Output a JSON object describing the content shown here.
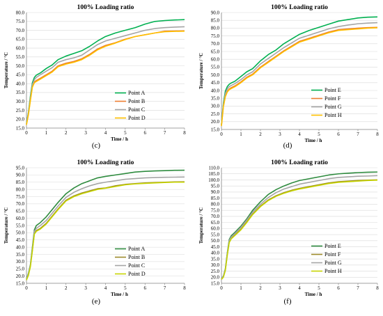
{
  "chart_data": [
    {
      "panel_label": "(c)",
      "type": "line",
      "title": "100% Loading ratio",
      "xlabel": "Time / h",
      "ylabel": "Temperature / °C",
      "xlim": [
        0,
        8
      ],
      "ylim": [
        15,
        80
      ],
      "x_ticks": [
        "0",
        "1",
        "2",
        "3",
        "4",
        "5",
        "6",
        "7",
        "8"
      ],
      "y_ticks": [
        "15.0",
        "20.0",
        "25.0",
        "30.0",
        "35.0",
        "40.0",
        "45.0",
        "50.0",
        "55.0",
        "60.0",
        "65.0",
        "70.0",
        "75.0",
        "80.0"
      ],
      "grid": "horizontal",
      "legend_position": "center-right",
      "x": [
        0,
        0.1,
        0.2,
        0.3,
        0.4,
        0.5,
        0.7,
        1.0,
        1.3,
        1.6,
        2.0,
        2.4,
        2.8,
        3.2,
        3.6,
        4.0,
        4.5,
        5.0,
        5.5,
        6.0,
        6.5,
        7.0,
        7.5,
        8.0
      ],
      "series": [
        {
          "name": "Point A",
          "color": "#00b050",
          "values": [
            17.5,
            24,
            33,
            40.5,
            43.5,
            44.8,
            46,
            48.5,
            50.5,
            53.5,
            55.5,
            57,
            58.5,
            61,
            64,
            66.5,
            68.5,
            70,
            71.5,
            73.5,
            75,
            75.5,
            75.8,
            76
          ]
        },
        {
          "name": "Point B",
          "color": "#ed7d31",
          "values": [
            17,
            23,
            31,
            38.5,
            41,
            41.8,
            43,
            45,
            47,
            50,
            51.5,
            52.5,
            54,
            56.5,
            59.5,
            61.5,
            63,
            65,
            66.5,
            67.5,
            68.5,
            69.5,
            69.6,
            69.7
          ]
        },
        {
          "name": "Point C",
          "color": "#a5a5a5",
          "values": [
            17.2,
            23.5,
            32,
            39.5,
            42.2,
            43.5,
            45,
            47,
            49,
            52,
            53.5,
            54.5,
            56,
            59,
            62,
            64,
            65.5,
            67,
            68.5,
            70,
            71,
            71.5,
            71.8,
            72
          ]
        },
        {
          "name": "Point D",
          "color": "#ffc000",
          "values": [
            16.8,
            22.5,
            30.5,
            38,
            40.5,
            41.2,
            42.5,
            44.5,
            46.5,
            49.5,
            51,
            52,
            53.5,
            56,
            59,
            61,
            62.8,
            64.8,
            66.5,
            67.5,
            68.5,
            69.2,
            69.4,
            69.5
          ]
        }
      ]
    },
    {
      "panel_label": "(d)",
      "type": "line",
      "title": "100% Loading ratio",
      "xlabel": "Time / h",
      "ylabel": "Temperature / °C",
      "xlim": [
        0,
        8
      ],
      "ylim": [
        15,
        90
      ],
      "x_ticks": [
        "0",
        "1",
        "2",
        "3",
        "4",
        "5",
        "6",
        "7",
        "8"
      ],
      "y_ticks": [
        "15.0",
        "20.0",
        "25.0",
        "30.0",
        "35.0",
        "40.0",
        "45.0",
        "50.0",
        "55.0",
        "60.0",
        "65.0",
        "70.0",
        "75.0",
        "80.0",
        "85.0",
        "90.0"
      ],
      "grid": "horizontal",
      "legend_position": "bottom-right",
      "x": [
        0,
        0.1,
        0.2,
        0.3,
        0.4,
        0.5,
        0.7,
        1.0,
        1.3,
        1.6,
        2.0,
        2.4,
        2.8,
        3.2,
        3.6,
        4.0,
        4.5,
        5.0,
        5.5,
        6.0,
        6.5,
        7.0,
        7.5,
        8.0
      ],
      "series": [
        {
          "name": "Point E",
          "color": "#00b050",
          "values": [
            18,
            32,
            39.5,
            42.5,
            44,
            44.8,
            46,
            49,
            52,
            54,
            59,
            63,
            66,
            70,
            73,
            76,
            78.5,
            80.5,
            82.5,
            84.5,
            85.5,
            86.5,
            87,
            87.2
          ]
        },
        {
          "name": "Point F",
          "color": "#ed7d31",
          "values": [
            17.5,
            30,
            36.5,
            39.5,
            41,
            41.8,
            43,
            45.5,
            48.5,
            50.5,
            55,
            58.5,
            62,
            65.5,
            68.5,
            71.5,
            73.5,
            75.5,
            77.5,
            79,
            79.5,
            80,
            80.3,
            80.5
          ]
        },
        {
          "name": "Point G",
          "color": "#a5a5a5",
          "values": [
            17.8,
            31,
            38,
            41,
            42.5,
            43.2,
            44.5,
            47,
            50,
            52,
            57,
            60.5,
            64,
            67.5,
            70.5,
            73.5,
            75.5,
            77.5,
            79.5,
            81,
            82,
            82.8,
            83.2,
            83.5
          ]
        },
        {
          "name": "Point H",
          "color": "#ffc000",
          "values": [
            17.2,
            29.5,
            36,
            39,
            40.5,
            41.2,
            42.5,
            45,
            48,
            50,
            54.5,
            58,
            61.5,
            65,
            68,
            71,
            73,
            75,
            77,
            78.5,
            79,
            79.5,
            80,
            80.2
          ]
        }
      ]
    },
    {
      "panel_label": "(e)",
      "type": "line",
      "title": "100% Loading ratio",
      "xlabel": "Time / h",
      "ylabel": "Temperature / °C",
      "xlim": [
        0,
        8
      ],
      "ylim": [
        15,
        95
      ],
      "x_ticks": [
        "0",
        "1",
        "2",
        "3",
        "4",
        "5",
        "6",
        "7",
        "8"
      ],
      "y_ticks": [
        "15.0",
        "20.0",
        "25.0",
        "30.0",
        "35.0",
        "40.0",
        "45.0",
        "50.0",
        "55.0",
        "60.0",
        "65.0",
        "70.0",
        "75.0",
        "80.0",
        "85.0",
        "90.0",
        "95.0"
      ],
      "grid": "horizontal",
      "legend_position": "bottom-right",
      "x": [
        0,
        0.1,
        0.2,
        0.3,
        0.4,
        0.5,
        0.7,
        1.0,
        1.3,
        1.6,
        2.0,
        2.4,
        2.8,
        3.2,
        3.6,
        4.0,
        4.5,
        5.0,
        5.5,
        6.0,
        6.5,
        7.0,
        7.5,
        8.0
      ],
      "series": [
        {
          "name": "Point A",
          "color": "#2e8b3e",
          "values": [
            18,
            22,
            28,
            40,
            52,
            55,
            57,
            61,
            66,
            71,
            77,
            81,
            84,
            86,
            88,
            89,
            90,
            91,
            92,
            92.5,
            92.8,
            93,
            93.2,
            93.3
          ]
        },
        {
          "name": "Point B",
          "color": "#9c8a2a",
          "values": [
            17.5,
            21,
            27,
            38,
            49.5,
            51.5,
            53,
            56.5,
            61.5,
            66.5,
            72.5,
            75.5,
            77.5,
            79,
            80.5,
            81,
            82.5,
            83.5,
            84,
            84.5,
            84.8,
            85,
            85.2,
            85.3
          ]
        },
        {
          "name": "Point C",
          "color": "#a5a5a5",
          "values": [
            17.8,
            21.5,
            27.5,
            39,
            51,
            53,
            55,
            58.5,
            63.5,
            68.5,
            74.5,
            78,
            80.5,
            82.5,
            84,
            85,
            86,
            87,
            87.5,
            88,
            88.2,
            88.4,
            88.5,
            88.6
          ]
        },
        {
          "name": "Point D",
          "color": "#c6d400",
          "values": [
            17.2,
            20.5,
            26.5,
            37.5,
            49,
            51,
            52.5,
            56,
            61,
            66,
            72,
            75,
            77,
            78.5,
            80,
            80.8,
            82,
            83.2,
            83.8,
            84.2,
            84.5,
            84.8,
            85,
            85
          ]
        }
      ]
    },
    {
      "panel_label": "(f)",
      "type": "line",
      "title": "100% Loading ratio",
      "xlabel": "Time / h",
      "ylabel": "Temperature / °C",
      "xlim": [
        0,
        8
      ],
      "ylim": [
        15,
        110
      ],
      "x_ticks": [
        "0",
        "1",
        "2",
        "3",
        "4",
        "5",
        "6",
        "7",
        "8"
      ],
      "y_ticks": [
        "15.0",
        "20.0",
        "25.0",
        "30.0",
        "35.0",
        "40.0",
        "45.0",
        "50.0",
        "55.0",
        "60.0",
        "65.0",
        "70.0",
        "75.0",
        "80.0",
        "85.0",
        "90.0",
        "95.0",
        "100.0",
        "105.0",
        "110.0"
      ],
      "grid": "horizontal",
      "legend_position": "bottom-right",
      "x": [
        0,
        0.1,
        0.2,
        0.3,
        0.4,
        0.5,
        0.7,
        1.0,
        1.3,
        1.6,
        2.0,
        2.4,
        2.8,
        3.2,
        3.6,
        4.0,
        4.5,
        5.0,
        5.5,
        6.0,
        6.5,
        7.0,
        7.5,
        8.0
      ],
      "series": [
        {
          "name": "Point E",
          "color": "#2e8b3e",
          "values": [
            19,
            21,
            27,
            40,
            51,
            54,
            57,
            62,
            68,
            75,
            82,
            88,
            92,
            95,
            97.5,
            99.5,
            101,
            102.5,
            104,
            105,
            105.5,
            106,
            106.3,
            106.5
          ]
        },
        {
          "name": "Point F",
          "color": "#9c8a2a",
          "values": [
            18.5,
            20.5,
            26,
            38.5,
            49,
            52,
            55,
            59.5,
            65.5,
            72,
            78.5,
            83.5,
            87,
            89.5,
            91.5,
            93,
            94.5,
            96,
            97.5,
            98.5,
            99,
            99.5,
            99.8,
            100
          ]
        },
        {
          "name": "Point G",
          "color": "#a5a5a5",
          "values": [
            18.8,
            21,
            26.5,
            39.5,
            50,
            53,
            56,
            61,
            67,
            73.5,
            80,
            85.5,
            89.5,
            92.5,
            94.5,
            96.5,
            98,
            99.5,
            101,
            102,
            102.5,
            103,
            103.2,
            103.5
          ]
        },
        {
          "name": "Point H",
          "color": "#c6d400",
          "values": [
            18.2,
            20,
            25.5,
            38,
            48.5,
            51.5,
            54.5,
            59,
            65,
            71.5,
            78,
            83,
            86.5,
            89,
            91,
            92.5,
            94,
            95.5,
            97,
            98,
            98.5,
            99,
            99.5,
            99.8
          ]
        }
      ]
    }
  ]
}
